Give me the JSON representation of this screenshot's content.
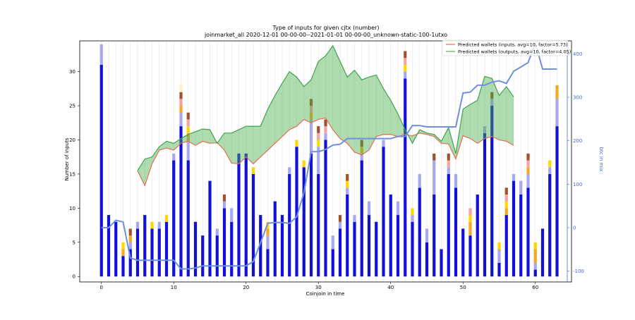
{
  "chart_data": {
    "type": "bar",
    "title": "Type of inputs for given cjtx (number)",
    "subtitle": "joinmarket_all 2020-12-01 00-00-00--2021-01-01 00-00-00_unknown-static-100-1utxo",
    "xlabel": "Coinjoin in time",
    "ylabel": "Number of inputs",
    "y2label": "btc in mix",
    "xlim": [
      -3,
      65
    ],
    "ylim": [
      -0.8,
      34.5
    ],
    "y2lim": [
      -125,
      430
    ],
    "xticks": [
      0,
      10,
      20,
      30,
      40,
      50,
      60
    ],
    "yticks": [
      0,
      5,
      10,
      15,
      20,
      25,
      30
    ],
    "y2ticks": [
      -100,
      0,
      100,
      200,
      300,
      400
    ],
    "grid": "vertical lines at each coinjoin",
    "legend_placement": "top-right",
    "legend": [
      {
        "label": "Predicted wallets (inputs, avg=10, factor=5.73)",
        "color": "#e07050"
      },
      {
        "label": "Predicted wallets (outputs, avg=10, factor=4.05)",
        "color": "#4caf50"
      }
    ],
    "stack_colors": [
      "#1010d8",
      "#a8a8f0",
      "#f5a623",
      "#ffd700",
      "#f4a3a3",
      "#a0522d",
      "#fff1c6"
    ],
    "bars": [
      [
        31,
        3,
        0,
        0,
        0,
        0,
        0
      ],
      [
        9,
        0,
        0,
        0,
        0,
        0,
        0
      ],
      [
        8,
        0,
        0,
        0,
        0,
        0,
        0
      ],
      [
        3,
        0,
        1,
        1,
        0,
        0,
        0
      ],
      [
        4,
        1,
        1,
        0,
        0,
        1,
        0
      ],
      [
        7,
        1,
        0,
        0,
        0,
        0,
        0
      ],
      [
        9,
        0,
        0,
        0,
        0,
        0,
        0
      ],
      [
        7,
        0,
        0,
        1,
        0,
        0,
        0
      ],
      [
        7,
        1,
        0,
        0,
        0,
        0,
        0
      ],
      [
        8,
        0,
        0,
        1,
        0,
        0,
        0
      ],
      [
        17,
        1,
        0,
        0,
        0,
        0,
        0
      ],
      [
        22,
        2,
        1,
        0,
        1,
        1,
        1
      ],
      [
        17,
        3,
        1,
        1,
        1,
        1,
        0
      ],
      [
        8,
        0,
        0,
        0,
        0,
        0,
        0
      ],
      [
        6,
        0,
        0,
        0,
        0,
        0,
        0
      ],
      [
        14,
        0,
        0,
        0,
        0,
        0,
        0
      ],
      [
        6,
        1,
        0,
        0,
        0,
        0,
        0
      ],
      [
        10,
        1,
        0,
        0,
        0,
        1,
        0
      ],
      [
        8,
        2,
        0,
        0,
        0,
        0,
        0
      ],
      [
        18,
        0,
        0,
        0,
        0,
        0,
        0
      ],
      [
        18,
        0,
        0,
        0,
        0,
        0,
        0
      ],
      [
        15,
        0,
        0,
        1,
        0,
        0,
        0
      ],
      [
        9,
        0,
        0,
        0,
        0,
        0,
        0
      ],
      [
        4,
        2,
        1,
        1,
        0,
        0,
        0
      ],
      [
        11,
        0,
        0,
        0,
        0,
        0,
        0
      ],
      [
        9,
        0,
        0,
        0,
        0,
        0,
        0
      ],
      [
        15,
        1,
        0,
        0,
        0,
        0,
        0
      ],
      [
        19,
        0,
        0,
        1,
        0,
        0,
        0
      ],
      [
        16,
        0,
        0,
        1,
        0,
        0,
        0
      ],
      [
        18,
        5,
        1,
        0,
        1,
        1,
        0
      ],
      [
        15,
        4,
        0,
        1,
        1,
        1,
        0
      ],
      [
        20,
        1,
        0,
        0,
        1,
        1,
        0
      ],
      [
        4,
        2,
        0,
        0,
        0,
        0,
        0
      ],
      [
        7,
        1,
        0,
        0,
        0,
        1,
        0
      ],
      [
        12,
        1,
        0,
        1,
        0,
        1,
        0
      ],
      [
        8,
        1,
        0,
        0,
        0,
        0,
        0
      ],
      [
        17,
        1,
        1,
        0,
        0,
        1,
        0
      ],
      [
        9,
        2,
        0,
        0,
        0,
        0,
        0
      ],
      [
        8,
        0,
        0,
        0,
        0,
        0,
        0
      ],
      [
        19,
        1,
        0,
        0,
        0,
        0,
        0
      ],
      [
        12,
        0,
        0,
        0,
        0,
        0,
        0
      ],
      [
        9,
        2,
        0,
        0,
        0,
        0,
        0
      ],
      [
        29,
        1,
        0,
        1,
        1,
        1,
        0
      ],
      [
        8,
        1,
        0,
        1,
        0,
        0,
        0
      ],
      [
        13,
        2,
        0,
        0,
        0,
        0,
        0
      ],
      [
        5,
        2,
        0,
        0,
        0,
        0,
        0
      ],
      [
        12,
        5,
        0,
        0,
        0,
        1,
        0
      ],
      [
        4,
        0,
        0,
        0,
        0,
        0,
        0
      ],
      [
        15,
        1,
        0,
        0,
        1,
        1,
        0
      ],
      [
        13,
        2,
        0,
        0,
        0,
        0,
        0
      ],
      [
        7,
        0,
        0,
        0,
        0,
        0,
        0
      ],
      [
        6,
        0,
        2,
        1,
        1,
        0,
        0
      ],
      [
        12,
        0,
        0,
        0,
        0,
        0,
        0
      ],
      [
        21,
        1,
        0,
        0,
        0,
        0,
        0
      ],
      [
        25,
        1,
        0,
        0,
        0,
        1,
        0
      ],
      [
        2,
        2,
        0,
        1,
        0,
        0,
        0
      ],
      [
        9,
        0,
        1,
        1,
        1,
        1,
        0
      ],
      [
        14,
        1,
        0,
        0,
        0,
        0,
        0
      ],
      [
        12,
        2,
        0,
        0,
        0,
        0,
        0
      ],
      [
        13,
        2,
        1,
        0,
        1,
        1,
        0
      ],
      [
        1,
        1,
        2,
        1,
        0,
        0,
        0
      ],
      [
        7,
        0,
        0,
        0,
        0,
        0,
        0
      ],
      [
        15,
        1,
        0,
        1,
        0,
        0,
        0
      ],
      [
        22,
        4,
        2,
        0,
        0,
        0,
        0
      ]
    ],
    "inputs_wallets": {
      "x": [
        5,
        6,
        7,
        8,
        9,
        10,
        11,
        12,
        13,
        14,
        15,
        16,
        17,
        18,
        19,
        20,
        21,
        22,
        23,
        24,
        25,
        26,
        27,
        28,
        29,
        30,
        31,
        32,
        33,
        34,
        35,
        36,
        37,
        38,
        39,
        40,
        41,
        42,
        43,
        44,
        45,
        46,
        47,
        48,
        49,
        50,
        51,
        52,
        53,
        54,
        55,
        56,
        57
      ],
      "values": [
        15.5,
        13.3,
        16.5,
        18.5,
        18.8,
        18.5,
        19.5,
        19.8,
        19.2,
        19.8,
        19.5,
        19.6,
        18.5,
        16.6,
        16.5,
        17.5,
        16.5,
        17.5,
        18.5,
        19.5,
        20.5,
        21.5,
        22,
        23,
        22.5,
        23,
        23.2,
        21.5,
        20.2,
        19.5,
        18.2,
        17.8,
        18.5,
        20.5,
        20.8,
        20.8,
        20.5,
        20.8,
        20.6,
        21,
        20.8,
        20.5,
        19.5,
        19.4,
        17.2,
        20.6,
        20.2,
        19.5,
        20.2,
        20.5,
        20,
        19.8,
        19.2
      ]
    },
    "outputs_wallets": {
      "x": [
        5,
        6,
        7,
        8,
        9,
        10,
        11,
        12,
        13,
        14,
        15,
        16,
        17,
        18,
        19,
        20,
        21,
        22,
        23,
        24,
        25,
        26,
        27,
        28,
        29,
        30,
        31,
        32,
        33,
        34,
        35,
        36,
        37,
        38,
        39,
        40,
        41,
        42,
        43,
        44,
        45,
        46,
        47,
        48,
        49,
        50,
        51,
        52,
        53,
        54,
        55,
        56,
        57
      ],
      "values": [
        15.5,
        17.2,
        17.5,
        19,
        19.8,
        19.5,
        20.2,
        20.8,
        21.2,
        21.6,
        21.5,
        19.5,
        21,
        21,
        21.5,
        22,
        22,
        22,
        24.5,
        26.5,
        28.3,
        30,
        29.2,
        27.8,
        28.8,
        31.5,
        32.3,
        33.8,
        31.5,
        29.2,
        30.2,
        28.8,
        29.2,
        29.5,
        27.5,
        25.8,
        23.8,
        21.5,
        19.5,
        21.5,
        21,
        20.8,
        19.8,
        21.8,
        18,
        24.5,
        25.2,
        25.8,
        29.3,
        29,
        26.5,
        27.8,
        26.3
      ]
    },
    "btc_in_mix": {
      "x": [
        0,
        1,
        2,
        3,
        4,
        5,
        6,
        7,
        8,
        9,
        10,
        11,
        12,
        13,
        14,
        15,
        16,
        17,
        18,
        19,
        20,
        21,
        22,
        23,
        24,
        25,
        26,
        27,
        28,
        29,
        30,
        31,
        32,
        33,
        34,
        35,
        36,
        37,
        38,
        39,
        40,
        41,
        42,
        43,
        44,
        45,
        46,
        47,
        48,
        49,
        50,
        51,
        52,
        53,
        54,
        55,
        56,
        57,
        58,
        59,
        60,
        61,
        62,
        63
      ],
      "values": [
        0,
        0,
        17,
        13,
        -70,
        -75,
        -75,
        -75,
        -75,
        -75,
        -75,
        -95,
        -95,
        -93,
        -88,
        -88,
        -88,
        -88,
        -88,
        -88,
        -88,
        -78,
        -35,
        10,
        12,
        12,
        10,
        25,
        80,
        175,
        175,
        180,
        190,
        192,
        205,
        205,
        205,
        205,
        205,
        205,
        205,
        210,
        210,
        235,
        235,
        232,
        232,
        232,
        232,
        232,
        310,
        312,
        328,
        328,
        335,
        338,
        332,
        360,
        370,
        380,
        425,
        365,
        365,
        365
      ]
    }
  }
}
